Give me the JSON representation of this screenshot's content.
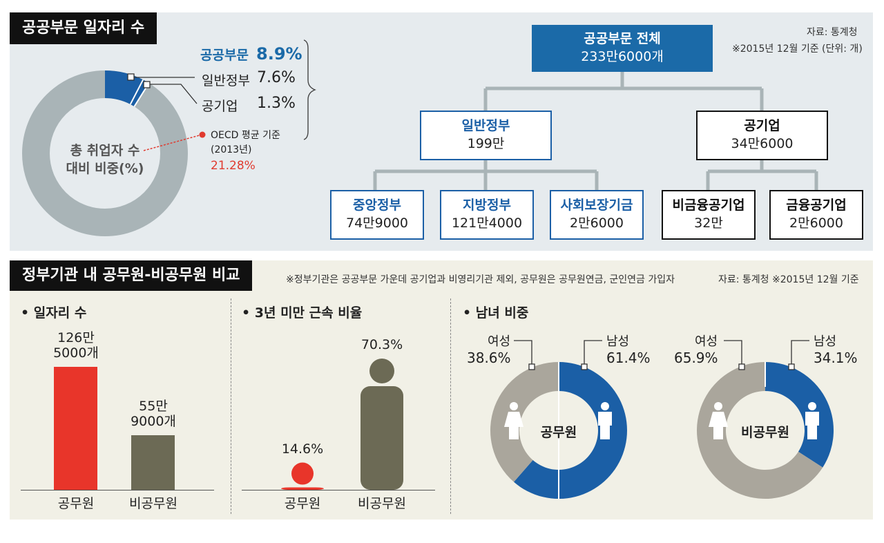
{
  "top": {
    "title": "공공부문 일자리 수",
    "source": "자료: 통계청",
    "basis": "※2015년 12월 기준 (단위: 개)",
    "donut_center": [
      "총 취업자 수",
      "대비 비중(%)"
    ],
    "public_label": "공공부문",
    "public_pct": "8.9%",
    "gov_label": "일반정부",
    "gov_pct": "7.6%",
    "corp_label": "공기업",
    "corp_pct": "1.3%",
    "oecd_line1": "OECD 평균 기준",
    "oecd_line2": "(2013년)",
    "oecd_pct": "21.28%",
    "org": {
      "root": {
        "title": "공공부문 전체",
        "value": "233만6000개"
      },
      "gov": {
        "title": "일반정부",
        "value": "199만"
      },
      "corp": {
        "title": "공기업",
        "value": "34만6000"
      },
      "central": {
        "title": "중앙정부",
        "value": "74만9000"
      },
      "local": {
        "title": "지방정부",
        "value": "121만4000"
      },
      "social": {
        "title": "사회보장기금",
        "value": "2만6000"
      },
      "nonfin": {
        "title": "비금융공기업",
        "value": "32만"
      },
      "fin": {
        "title": "금융공기업",
        "value": "2만6000"
      }
    }
  },
  "bottom": {
    "title": "정부기관 내 공무원-비공무원 비교",
    "footnote": "※정부기관은 공공부문 가운데 공기업과 비영리기관 제외, 공무원은 공무원연금, 군인연금 가입자",
    "source": "자료: 통계청 ※2015년 12월 기준",
    "jobs": {
      "heading": "• 일자리 수",
      "label1_line1": "126만",
      "label1_line2": "5000개",
      "label2_line1": "55만",
      "label2_line2": "9000개",
      "x1": "공무원",
      "x2": "비공무원"
    },
    "tenure": {
      "heading": "• 3년 미만 근속 비율",
      "label1": "14.6%",
      "label2": "70.3%",
      "x1": "공무원",
      "x2": "비공무원"
    },
    "gender": {
      "heading": "• 남녀 비중",
      "d1_center": "공무원",
      "d1_female_label": "여성",
      "d1_female_pct": "38.6%",
      "d1_male_label": "남성",
      "d1_male_pct": "61.4%",
      "d2_center": "비공무원",
      "d2_female_label": "여성",
      "d2_female_pct": "65.9%",
      "d2_male_label": "남성",
      "d2_male_pct": "34.1%"
    }
  },
  "colors": {
    "blue": "#1b5fa6",
    "red": "#e8352a",
    "olive": "#6c6a55",
    "grey": "#a9b4b7",
    "lightgrey": "#aaa69c",
    "accent_text": "#1b6aa8",
    "oecd_red": "#e03a2f"
  },
  "chart_data": [
    {
      "type": "pie",
      "title": "공공부문 일자리 수",
      "center_label": "총 취업자 수 대비 비중(%)",
      "series": [
        {
          "name": "일반정부",
          "value": 7.6
        },
        {
          "name": "공기업",
          "value": 1.3
        }
      ],
      "total_public": 8.9,
      "oecd_reference": 21.28
    },
    {
      "type": "bar",
      "title": "일자리 수",
      "categories": [
        "공무원",
        "비공무원"
      ],
      "values": [
        1265000,
        559000
      ]
    },
    {
      "type": "bar",
      "title": "3년 미만 근속 비율",
      "categories": [
        "공무원",
        "비공무원"
      ],
      "values": [
        14.6,
        70.3
      ]
    },
    {
      "type": "pie",
      "title": "공무원",
      "series": [
        {
          "name": "여성",
          "value": 38.6
        },
        {
          "name": "남성",
          "value": 61.4
        }
      ]
    },
    {
      "type": "pie",
      "title": "비공무원",
      "series": [
        {
          "name": "여성",
          "value": 65.9
        },
        {
          "name": "남성",
          "value": 34.1
        }
      ]
    }
  ]
}
